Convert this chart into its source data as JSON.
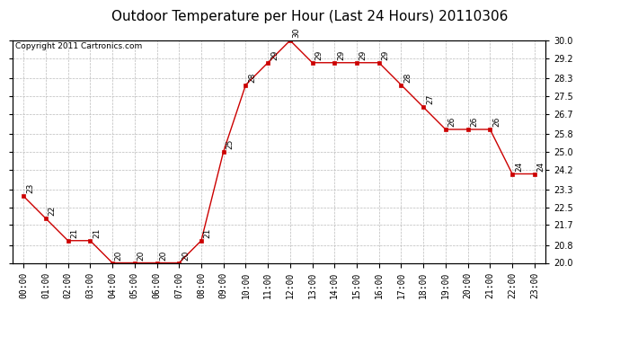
{
  "title": "Outdoor Temperature per Hour (Last 24 Hours) 20110306",
  "copyright": "Copyright 2011 Cartronics.com",
  "hours": [
    "00:00",
    "01:00",
    "02:00",
    "03:00",
    "04:00",
    "05:00",
    "06:00",
    "07:00",
    "08:00",
    "09:00",
    "10:00",
    "11:00",
    "12:00",
    "13:00",
    "14:00",
    "15:00",
    "16:00",
    "17:00",
    "18:00",
    "19:00",
    "20:00",
    "21:00",
    "22:00",
    "23:00"
  ],
  "temps": [
    23,
    22,
    21,
    21,
    20,
    20,
    20,
    20,
    21,
    25,
    28,
    29,
    30,
    29,
    29,
    29,
    29,
    28,
    27,
    26,
    26,
    26,
    24,
    24
  ],
  "line_color": "#cc0000",
  "marker_color": "#cc0000",
  "bg_color": "#ffffff",
  "grid_color": "#bbbbbb",
  "ylim_min": 20.0,
  "ylim_max": 30.0,
  "yticks": [
    20.0,
    20.8,
    21.7,
    22.5,
    23.3,
    24.2,
    25.0,
    25.8,
    26.7,
    27.5,
    28.3,
    29.2,
    30.0
  ],
  "title_fontsize": 11,
  "copyright_fontsize": 6.5,
  "tick_fontsize": 7,
  "annot_fontsize": 6.5
}
